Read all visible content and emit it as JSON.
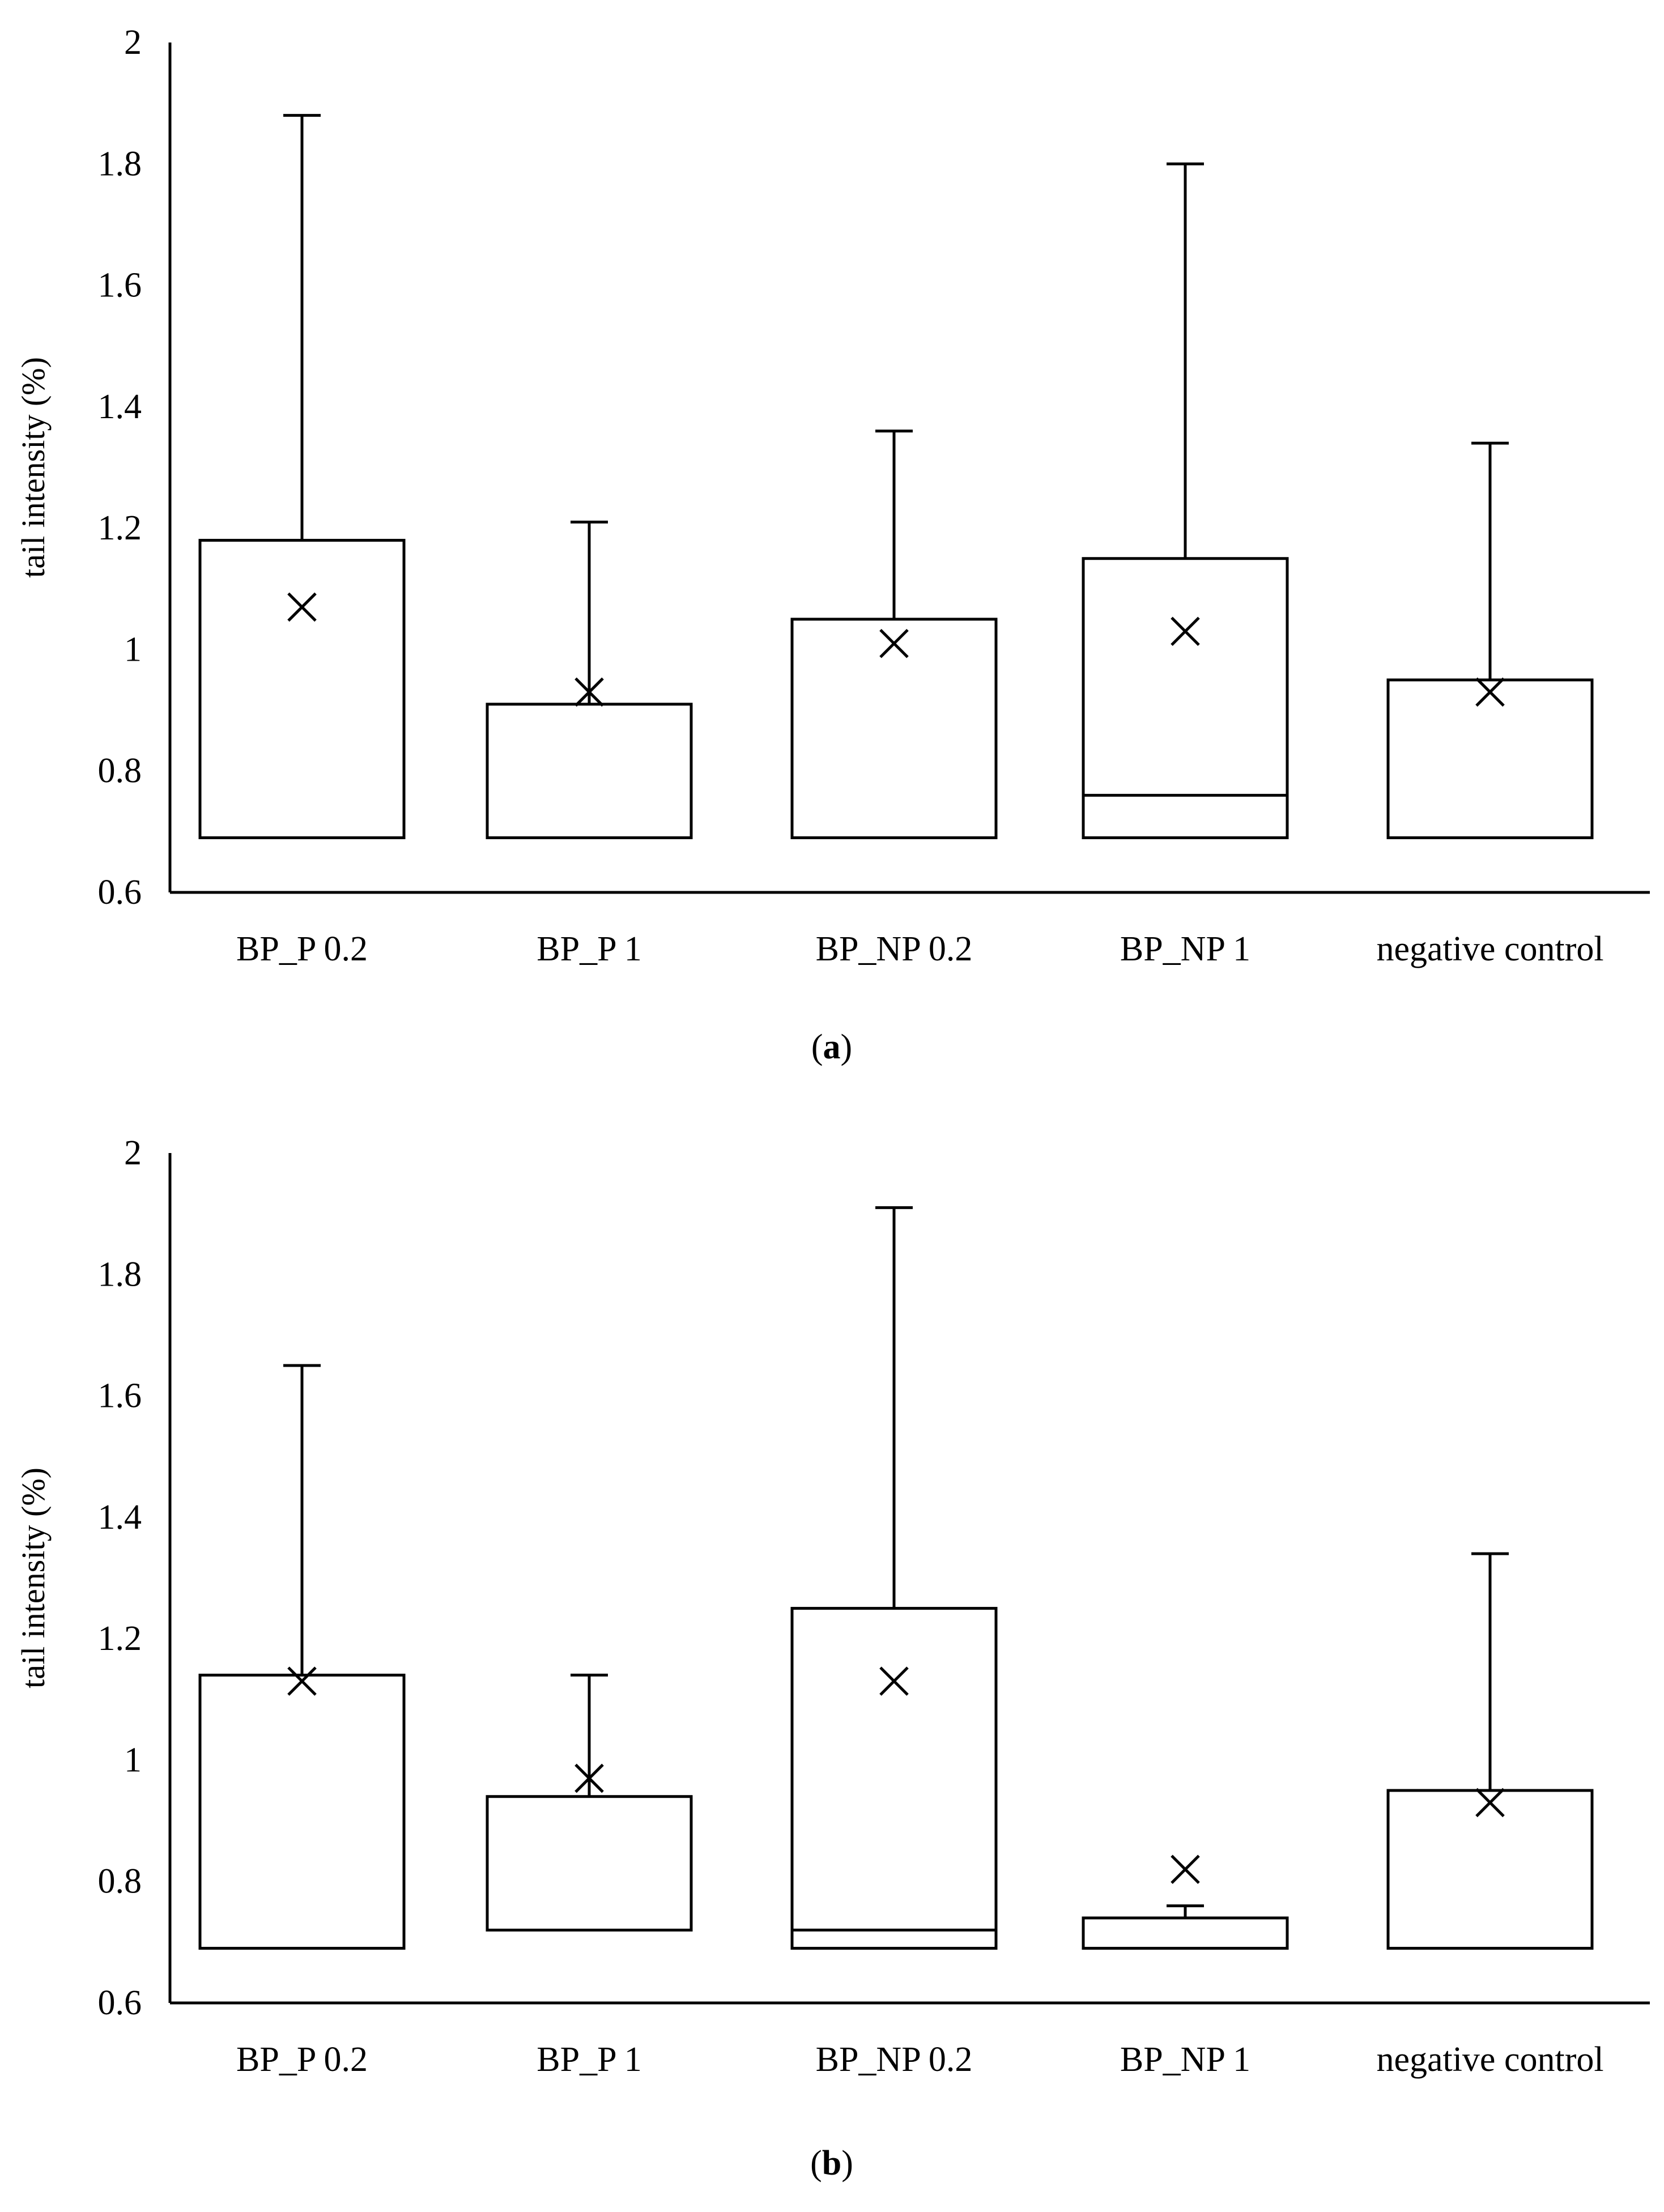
{
  "chart_data": [
    {
      "type": "boxplot",
      "ylabel": "tail intensity (%)",
      "xlabel": "",
      "ylim": [
        0.6,
        2
      ],
      "yticks": [
        "0.6",
        "0.8",
        "1",
        "1.2",
        "1.4",
        "1.6",
        "1.8",
        "2"
      ],
      "caption_letter": "a",
      "categories": [
        "BP_P 0.2",
        "BP_P 1",
        "BP_NP 0.2",
        "BP_NP 1",
        "negative control"
      ],
      "boxes": [
        {
          "q1": 0.69,
          "median": 0.69,
          "q3": 1.18,
          "whisker_low": 0.69,
          "whisker_high": 1.88,
          "mean": 1.07
        },
        {
          "q1": 0.69,
          "median": 0.69,
          "q3": 0.91,
          "whisker_low": 0.69,
          "whisker_high": 1.21,
          "mean": 0.93
        },
        {
          "q1": 0.69,
          "median": 0.69,
          "q3": 1.05,
          "whisker_low": 0.69,
          "whisker_high": 1.36,
          "mean": 1.01
        },
        {
          "q1": 0.69,
          "median": 0.76,
          "q3": 1.15,
          "whisker_low": 0.69,
          "whisker_high": 1.8,
          "mean": 1.03
        },
        {
          "q1": 0.69,
          "median": 0.69,
          "q3": 0.95,
          "whisker_low": 0.69,
          "whisker_high": 1.34,
          "mean": 0.93
        }
      ]
    },
    {
      "type": "boxplot",
      "ylabel": "tail intensity (%)",
      "xlabel": "",
      "ylim": [
        0.6,
        2
      ],
      "yticks": [
        "0.6",
        "0.8",
        "1",
        "1.2",
        "1.4",
        "1.6",
        "1.8",
        "2"
      ],
      "caption_letter": "b",
      "categories": [
        "BP_P 0.2",
        "BP_P 1",
        "BP_NP 0.2",
        "BP_NP 1",
        "negative control"
      ],
      "boxes": [
        {
          "q1": 0.69,
          "median": 0.69,
          "q3": 1.14,
          "whisker_low": 0.69,
          "whisker_high": 1.65,
          "mean": 1.13
        },
        {
          "q1": 0.72,
          "median": 0.72,
          "q3": 0.94,
          "whisker_low": 0.72,
          "whisker_high": 1.14,
          "mean": 0.97
        },
        {
          "q1": 0.69,
          "median": 0.72,
          "q3": 1.25,
          "whisker_low": 0.69,
          "whisker_high": 1.91,
          "mean": 1.13
        },
        {
          "q1": 0.69,
          "median": 0.69,
          "q3": 0.74,
          "whisker_low": 0.69,
          "whisker_high": 0.76,
          "mean": 0.82
        },
        {
          "q1": 0.69,
          "median": 0.69,
          "q3": 0.95,
          "whisker_low": 0.69,
          "whisker_high": 1.34,
          "mean": 0.93
        }
      ]
    }
  ]
}
